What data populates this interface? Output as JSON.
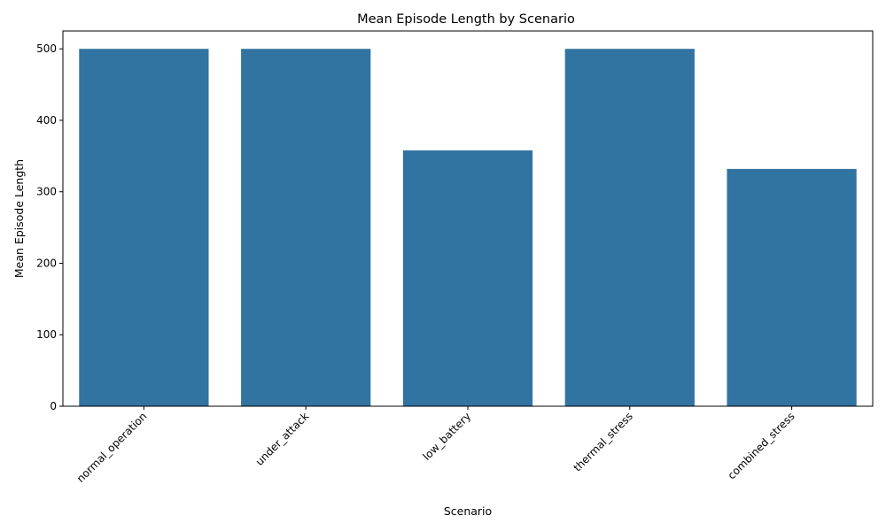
{
  "chart_data": {
    "type": "bar",
    "title": "Mean Episode Length by Scenario",
    "xlabel": "Scenario",
    "ylabel": "Mean Episode Length",
    "categories": [
      "normal_operation",
      "under_attack",
      "low_battery",
      "thermal_stress",
      "combined_stress"
    ],
    "values": [
      500,
      500,
      358,
      500,
      332
    ],
    "ylim": [
      0,
      525
    ],
    "yticks": [
      0,
      100,
      200,
      300,
      400,
      500
    ],
    "xtick_rotation_deg": 45,
    "bar_color": "#3274a1",
    "grid": false,
    "legend": null
  }
}
